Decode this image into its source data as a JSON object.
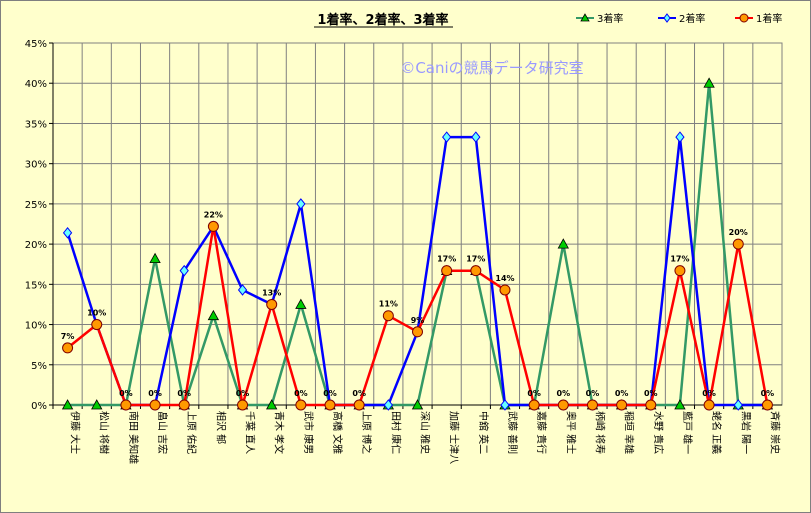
{
  "chart_data": {
    "type": "line",
    "title": "1着率、2着率、3着率",
    "watermark": "©Caniの競馬データ研究室",
    "categories": [
      "伊藤 大士",
      "松山 将樹",
      "南田 美知雄",
      "畠山 吉宏",
      "上原 佑紀",
      "相沢 郁",
      "千葉 直人",
      "青木 孝文",
      "武市 康男",
      "高橋 文雅",
      "上原 博之",
      "田村 康仁",
      "深山 雅史",
      "加藤 士津八",
      "中舘 英二",
      "武藤 善則",
      "嘉藤 貴行",
      "奥平 雅士",
      "柄崎 将寿",
      "稲垣 幸雄",
      "水野 貴広",
      "藍戸 雄一",
      "蛯名 正義",
      "黒岩 陽一",
      "斉藤 崇史"
    ],
    "series": [
      {
        "name": "3着率",
        "color": "#339966",
        "marker": "triangle",
        "marker_color": "#00cc00",
        "values": [
          0,
          0,
          0,
          18.2,
          0,
          11.1,
          0,
          0,
          12.5,
          0,
          0,
          0,
          0,
          16.7,
          16.7,
          0,
          0,
          20,
          0,
          0,
          0,
          0,
          40,
          0,
          0
        ]
      },
      {
        "name": "2着率",
        "color": "#0000ff",
        "marker": "diamond",
        "marker_color": "#66ffff",
        "values": [
          21.4,
          10,
          0,
          0,
          16.7,
          22.2,
          14.3,
          12.5,
          25,
          0,
          0,
          0,
          9.1,
          33.3,
          33.3,
          0,
          0,
          0,
          0,
          0,
          0,
          33.3,
          0,
          0,
          0
        ]
      },
      {
        "name": "1着率",
        "color": "#ff0000",
        "marker": "circle",
        "marker_color": "#ff9900",
        "values": [
          7.1,
          10,
          0,
          0,
          0,
          22.2,
          0,
          12.5,
          0,
          0,
          0,
          11.1,
          9.1,
          16.7,
          16.7,
          14.3,
          0,
          0,
          0,
          0,
          0,
          16.7,
          0,
          20,
          0
        ],
        "data_labels": [
          "7%",
          "10%",
          "0%",
          "0%",
          "0%",
          "22%",
          "0%",
          "13%",
          "0%",
          "0%",
          "0%",
          "11%",
          "9%",
          "17%",
          "17%",
          "14%",
          "0%",
          "0%",
          "0%",
          "0%",
          "0%",
          "17%",
          "0%",
          "20%",
          "0%"
        ]
      }
    ],
    "ylim": [
      0,
      45
    ],
    "yticks": [
      "0%",
      "5%",
      "10%",
      "15%",
      "20%",
      "25%",
      "30%",
      "35%",
      "40%",
      "45%"
    ],
    "legend_position": "top-right",
    "grid": true
  }
}
